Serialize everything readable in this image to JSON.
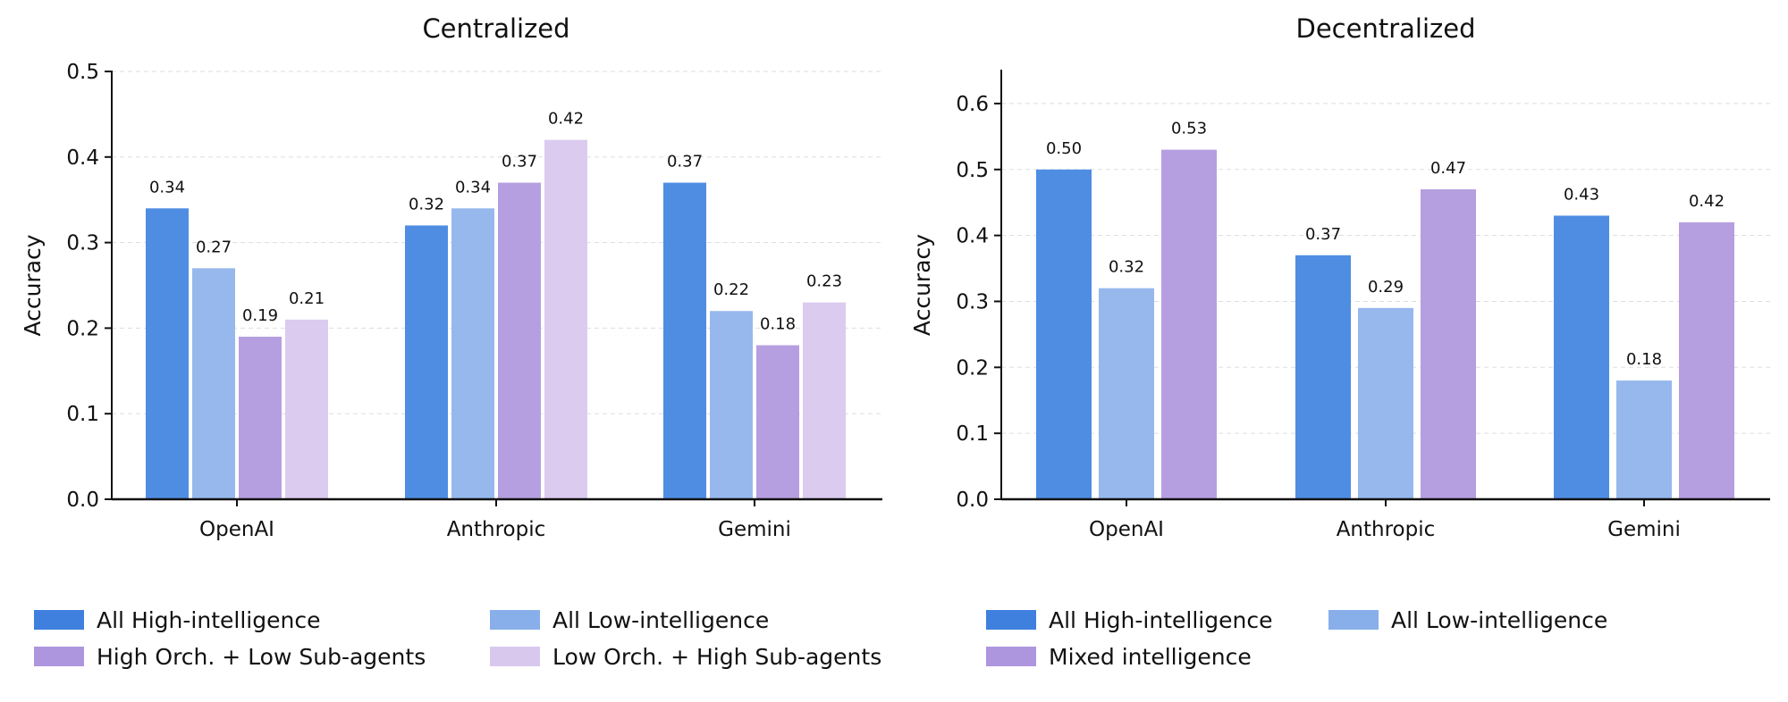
{
  "chart_data": [
    {
      "type": "bar",
      "title": "Centralized",
      "ylabel": "Accuracy",
      "xlabel": "",
      "categories": [
        "OpenAI",
        "Anthropic",
        "Gemini"
      ],
      "ylim": [
        0,
        0.5
      ],
      "yticks": [
        "0.0",
        "0.1",
        "0.2",
        "0.3",
        "0.4",
        "0.5"
      ],
      "grid": "horizontal dashed",
      "legend_position": "bottom",
      "series": [
        {
          "name": "All High-intelligence",
          "color": "#4f8de3",
          "legend_color": "#3f7fde",
          "values": [
            0.34,
            0.32,
            0.37
          ],
          "labels": [
            "0.34",
            "0.32",
            "0.37"
          ]
        },
        {
          "name": "All Low-intelligence",
          "color": "#96b8ed",
          "legend_color": "#88afea",
          "values": [
            0.27,
            0.34,
            0.22
          ],
          "labels": [
            "0.27",
            "0.34",
            "0.22"
          ]
        },
        {
          "name": "High Orch. + Low Sub-agents",
          "color": "#b59fe0",
          "legend_color": "#ad96de",
          "values": [
            0.19,
            0.37,
            0.18
          ],
          "labels": [
            "0.19",
            "0.37",
            "0.18"
          ]
        },
        {
          "name": "Low Orch. + High Sub-agents",
          "color": "#dbcbef",
          "legend_color": "#d8c8ee",
          "values": [
            0.21,
            0.42,
            0.23
          ],
          "labels": [
            "0.21",
            "0.42",
            "0.23"
          ]
        }
      ]
    },
    {
      "type": "bar",
      "title": "Decentralized",
      "ylabel": "Accuracy",
      "xlabel": "",
      "categories": [
        "OpenAI",
        "Anthropic",
        "Gemini"
      ],
      "ylim": [
        0,
        0.65
      ],
      "yticks": [
        "0.0",
        "0.1",
        "0.2",
        "0.3",
        "0.4",
        "0.5",
        "0.6"
      ],
      "grid": "horizontal dashed",
      "legend_position": "bottom",
      "series": [
        {
          "name": "All High-intelligence",
          "color": "#4f8de3",
          "legend_color": "#3f7fde",
          "values": [
            0.5,
            0.37,
            0.43
          ],
          "labels": [
            "0.50",
            "0.37",
            "0.43"
          ]
        },
        {
          "name": "All Low-intelligence",
          "color": "#96b8ed",
          "legend_color": "#88afea",
          "values": [
            0.32,
            0.29,
            0.18
          ],
          "labels": [
            "0.32",
            "0.29",
            "0.18"
          ]
        },
        {
          "name": "Mixed intelligence",
          "color": "#b59fe0",
          "legend_color": "#ad96de",
          "values": [
            0.53,
            0.47,
            0.42
          ],
          "labels": [
            "0.53",
            "0.47",
            "0.42"
          ]
        }
      ]
    }
  ]
}
